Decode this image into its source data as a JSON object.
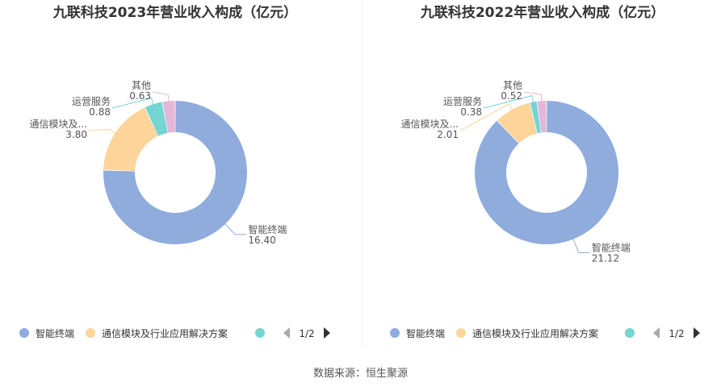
{
  "colors": {
    "series": [
      "#8facdc",
      "#fdd59b",
      "#74d5d2",
      "#e4b7d8"
    ],
    "legend_nav_inactive": "#aaaaaa",
    "legend_nav_active": "#333333"
  },
  "source": "数据来源：恒生聚源",
  "chart_data": [
    {
      "type": "pie",
      "title": "九联科技2023年营业收入构成（亿元）",
      "series": [
        {
          "name": "智能终端",
          "value": 16.4,
          "label": "智能终端",
          "value_label": "16.40"
        },
        {
          "name": "通信模块及行业应用解决方案",
          "value": 3.8,
          "label": "通信模块及...",
          "value_label": "3.80"
        },
        {
          "name": "运营服务",
          "value": 0.88,
          "label": "运营服务",
          "value_label": "0.88"
        },
        {
          "name": "其他",
          "value": 0.63,
          "label": "其他",
          "value_label": "0.63"
        }
      ],
      "legend": {
        "items": [
          "智能终端",
          "通信模块及行业应用解决方案"
        ],
        "page": "1/2"
      }
    },
    {
      "type": "pie",
      "title": "九联科技2022年营业收入构成（亿元）",
      "series": [
        {
          "name": "智能终端",
          "value": 21.12,
          "label": "智能终端",
          "value_label": "21.12"
        },
        {
          "name": "通信模块及行业应用解决方案",
          "value": 2.01,
          "label": "通信模块及...",
          "value_label": "2.01"
        },
        {
          "name": "运营服务",
          "value": 0.38,
          "label": "运营服务",
          "value_label": "0.38"
        },
        {
          "name": "其他",
          "value": 0.52,
          "label": "其他",
          "value_label": "0.52"
        }
      ],
      "legend": {
        "items": [
          "智能终端",
          "通信模块及行业应用解决方案"
        ],
        "page": "1/2"
      }
    }
  ]
}
